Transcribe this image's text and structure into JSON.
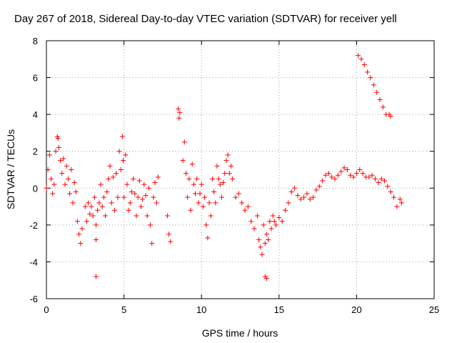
{
  "chart_data": {
    "type": "scatter",
    "title": "Day 267 of 2018, Sidereal Day-to-day VTEC variation (SDTVAR) for receiver yell",
    "xlabel": "GPS time / hours",
    "ylabel": "SDTVAR / TECUs",
    "xlim": [
      0,
      25
    ],
    "ylim": [
      -6,
      8
    ],
    "xticks": [
      "0",
      "5",
      "10",
      "15",
      "20",
      "25"
    ],
    "yticks": [
      "-6",
      "-4",
      "-2",
      "0",
      "2",
      "4",
      "6",
      "8"
    ],
    "grid": true,
    "marker": "+",
    "color": "#ff0000",
    "series": [
      {
        "name": "SDTVAR",
        "x": [
          0.0,
          0.1,
          0.2,
          0.3,
          0.4,
          0.5,
          0.6,
          0.7,
          0.75,
          0.8,
          0.9,
          1.0,
          1.1,
          1.2,
          1.3,
          1.4,
          1.5,
          1.6,
          1.7,
          1.8,
          1.9,
          2.0,
          2.1,
          2.2,
          2.3,
          2.5,
          2.6,
          2.7,
          2.8,
          2.9,
          3.0,
          3.1,
          3.2,
          3.2,
          3.3,
          3.4,
          3.5,
          3.6,
          3.7,
          3.8,
          3.9,
          4.0,
          4.1,
          4.2,
          4.3,
          4.4,
          4.5,
          4.6,
          4.7,
          4.8,
          4.9,
          4.95,
          5.0,
          5.1,
          5.2,
          5.3,
          5.4,
          5.5,
          5.6,
          5.7,
          5.8,
          5.9,
          6.0,
          6.1,
          6.2,
          6.3,
          6.4,
          6.5,
          6.6,
          6.7,
          6.8,
          6.9,
          7.0,
          7.1,
          7.2,
          7.8,
          7.9,
          8.0,
          8.5,
          8.55,
          8.6,
          8.8,
          8.9,
          9.0,
          9.1,
          9.2,
          9.3,
          9.4,
          9.5,
          9.6,
          9.7,
          9.8,
          9.9,
          10.0,
          10.1,
          10.2,
          10.3,
          10.4,
          10.5,
          10.6,
          10.7,
          10.8,
          10.9,
          11.0,
          11.1,
          11.2,
          11.3,
          11.4,
          11.5,
          11.6,
          11.7,
          11.8,
          11.9,
          12.0,
          12.2,
          12.4,
          12.6,
          12.8,
          13.0,
          13.2,
          13.4,
          13.6,
          13.7,
          13.8,
          13.9,
          14.0,
          14.1,
          14.2,
          14.3,
          14.4,
          14.5,
          14.6,
          14.7,
          14.8,
          15.0,
          15.2,
          15.4,
          15.6,
          15.8,
          16.0,
          16.2,
          16.4,
          16.6,
          16.8,
          17.0,
          17.2,
          17.4,
          17.6,
          17.8,
          18.0,
          18.2,
          18.4,
          18.6,
          18.8,
          19.0,
          19.2,
          19.4,
          19.6,
          19.8,
          20.0,
          20.2,
          20.4,
          20.6,
          20.8,
          21.0,
          21.2,
          21.4,
          21.6,
          21.8,
          22.0,
          22.2,
          22.4,
          22.6,
          22.8,
          22.9,
          20.1,
          20.3,
          20.5,
          20.7,
          20.9,
          21.1,
          21.3,
          21.5,
          21.7,
          21.9,
          22.1,
          22.2,
          3.2,
          14.2,
          14.1
        ],
        "y": [
          0.0,
          1.0,
          1.8,
          0.5,
          -0.3,
          0.2,
          2.0,
          2.8,
          2.7,
          2.2,
          1.5,
          0.8,
          1.6,
          0.2,
          1.2,
          0.5,
          -0.3,
          1.0,
          -0.8,
          0.3,
          -0.2,
          -1.8,
          -2.5,
          -3.0,
          -2.2,
          -1.0,
          -1.8,
          -0.8,
          -1.4,
          -1.0,
          -1.5,
          -0.5,
          -2.0,
          -2.8,
          -1.2,
          -0.8,
          0.2,
          -1.0,
          -0.5,
          -1.5,
          -0.2,
          0.5,
          1.2,
          -0.8,
          0.6,
          -1.2,
          0.8,
          -0.5,
          2.0,
          1.0,
          2.8,
          1.5,
          -0.5,
          1.8,
          0.2,
          -1.2,
          -0.8,
          -0.2,
          0.5,
          -0.3,
          -1.5,
          -0.5,
          0.4,
          -1.0,
          -0.6,
          0.2,
          -0.4,
          -1.5,
          0.0,
          -2.0,
          -3.0,
          -0.5,
          0.3,
          -0.8,
          0.6,
          -1.5,
          -2.5,
          -2.9,
          4.3,
          3.8,
          4.1,
          1.5,
          2.5,
          0.8,
          -0.5,
          0.5,
          -1.2,
          1.3,
          0.2,
          -0.3,
          0.5,
          -0.8,
          -0.3,
          0.2,
          -1.0,
          -0.5,
          -2.0,
          -2.7,
          -0.8,
          -1.5,
          0.5,
          -0.2,
          -0.8,
          1.2,
          0.5,
          0.2,
          -0.5,
          0.3,
          0.8,
          1.5,
          1.8,
          0.8,
          1.2,
          0.5,
          -0.5,
          -0.3,
          -0.8,
          -1.2,
          -1.0,
          -1.8,
          -2.2,
          -1.5,
          -2.8,
          -3.2,
          -3.6,
          -2.0,
          -3.0,
          -2.5,
          -2.8,
          -1.8,
          -2.2,
          -1.5,
          -1.8,
          -2.0,
          -1.6,
          -1.8,
          -1.2,
          -0.8,
          -0.2,
          0.0,
          -0.4,
          -0.6,
          -0.5,
          -0.3,
          -0.6,
          -0.5,
          -0.1,
          0.1,
          0.4,
          0.7,
          0.8,
          0.6,
          0.5,
          0.7,
          0.9,
          1.1,
          1.0,
          0.7,
          0.6,
          0.8,
          1.0,
          0.8,
          0.6,
          0.6,
          0.7,
          0.5,
          0.3,
          0.5,
          0.4,
          0.1,
          -0.2,
          -0.5,
          -1.0,
          -0.6,
          -0.8,
          7.2,
          7.0,
          6.7,
          6.3,
          6.0,
          5.6,
          5.2,
          4.8,
          4.4,
          4.0,
          4.0,
          3.9,
          -4.8,
          -4.9,
          -4.8
        ]
      }
    ]
  }
}
